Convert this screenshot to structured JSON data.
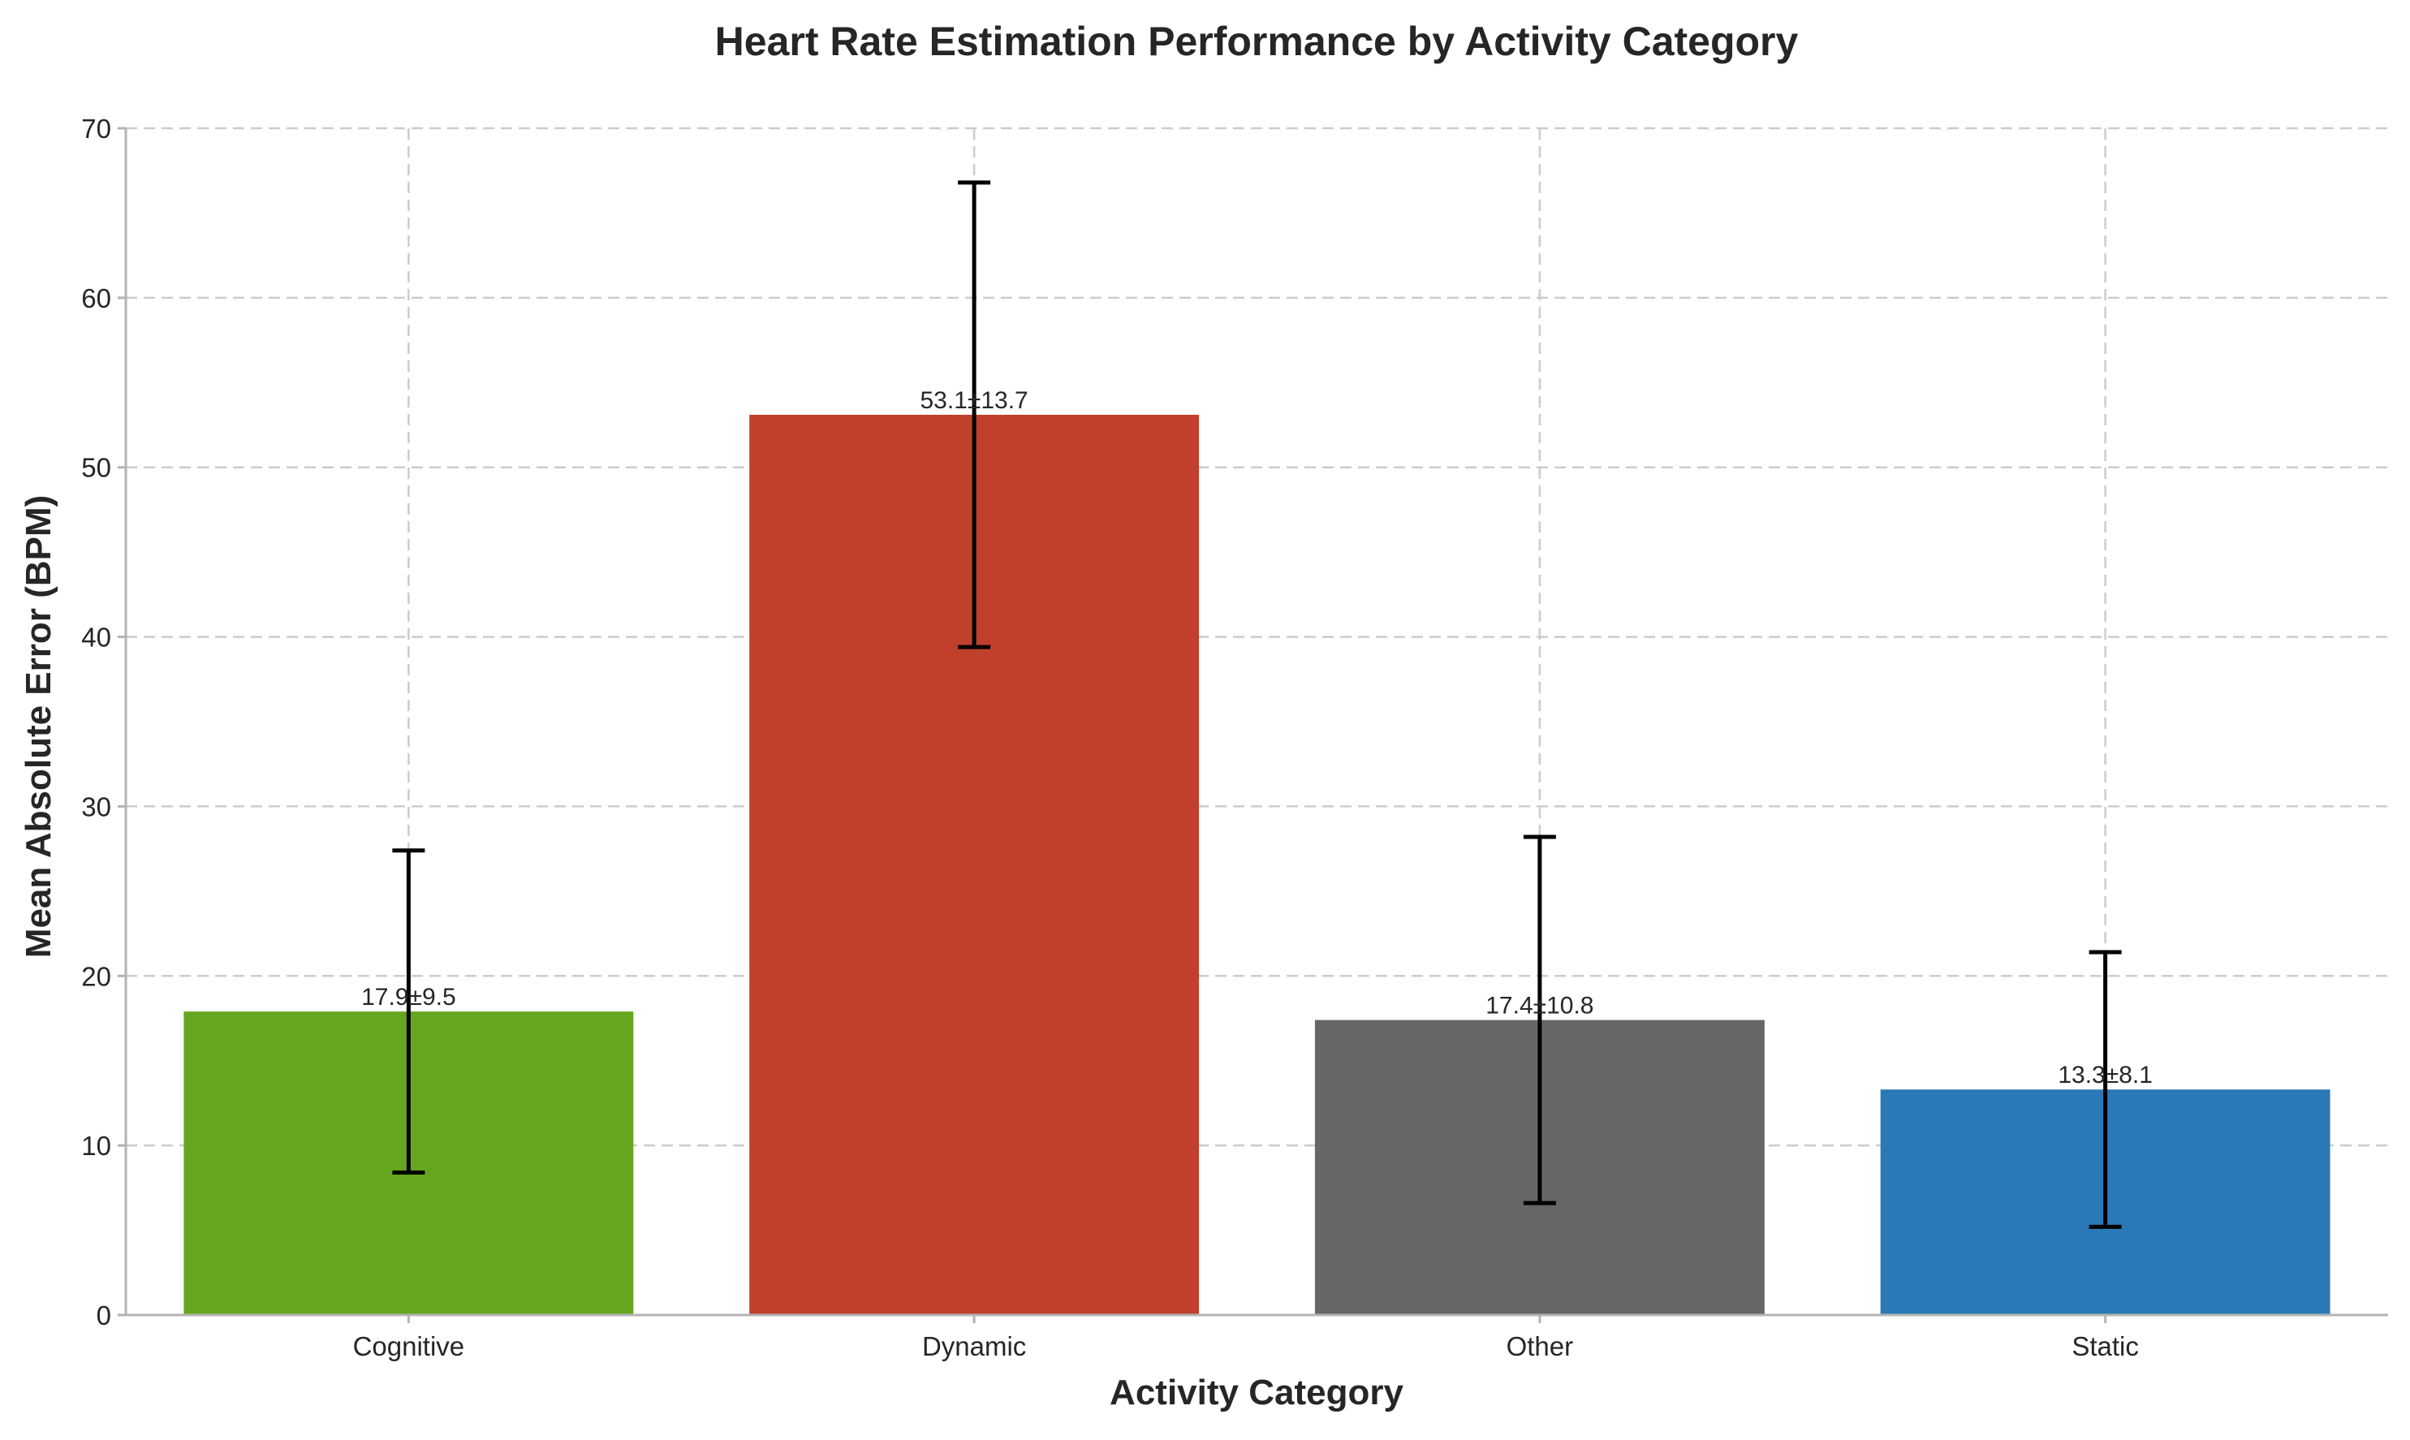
{
  "chart_data": {
    "type": "bar",
    "title": "Heart Rate Estimation Performance by Activity Category",
    "xlabel": "Activity Category",
    "ylabel": "Mean Absolute Error (BPM)",
    "categories": [
      "Cognitive",
      "Dynamic",
      "Other",
      "Static"
    ],
    "values": [
      17.9,
      53.1,
      17.4,
      13.3
    ],
    "errors": [
      9.5,
      13.7,
      10.8,
      8.1
    ],
    "bar_labels": [
      "17.9±9.5",
      "53.1±13.7",
      "17.4±10.8",
      "13.3±8.1"
    ],
    "colors": [
      "#66a61e",
      "#c0402c",
      "#666666",
      "#2a78b5"
    ],
    "ylim": [
      0,
      70
    ],
    "yticks": [
      0,
      10,
      20,
      30,
      40,
      50,
      60,
      70
    ],
    "grid": true
  }
}
